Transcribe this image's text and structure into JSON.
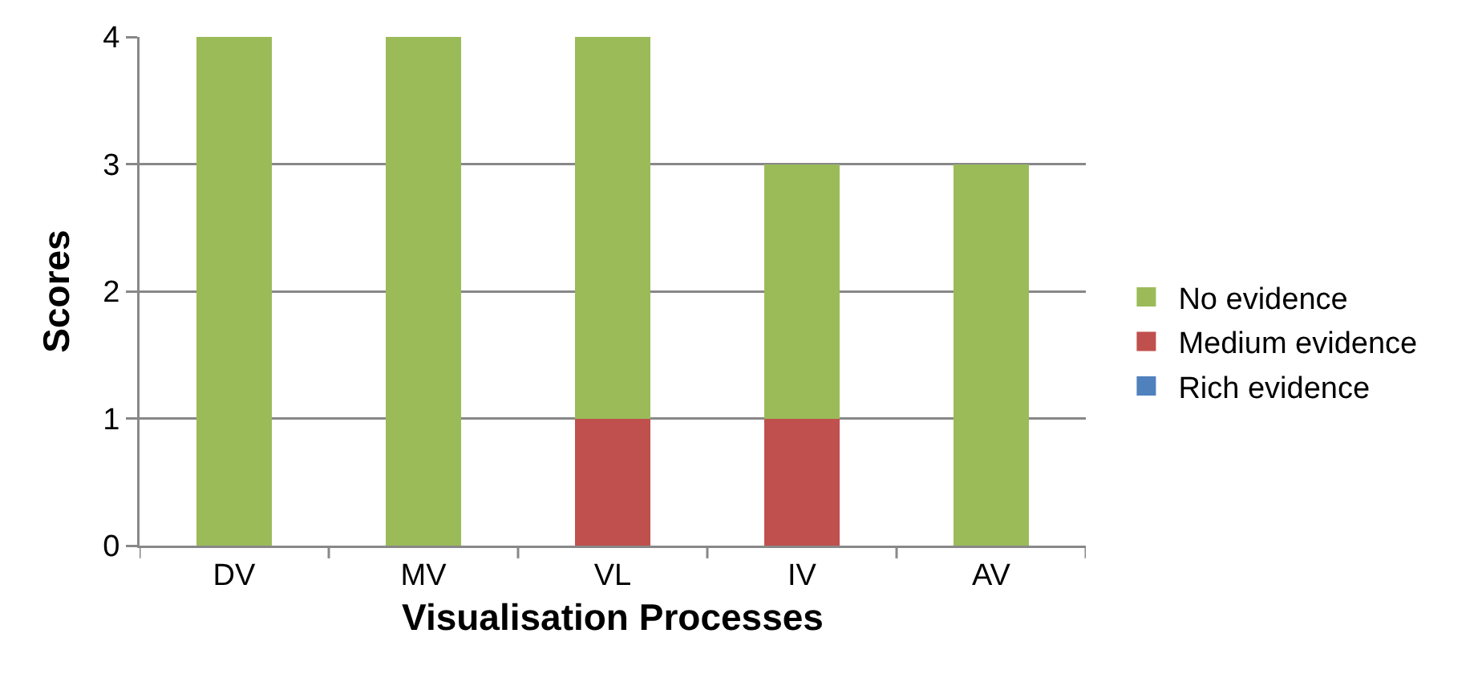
{
  "chart_data": {
    "type": "bar",
    "xlabel": "Visualisation Processes",
    "ylabel": "Scores",
    "categories": [
      "DV",
      "MV",
      "VL",
      "IV",
      "AV"
    ],
    "series": [
      {
        "name": "Rich evidence",
        "color": "#4f81bd",
        "values": [
          0,
          0,
          0,
          0,
          0
        ]
      },
      {
        "name": "Medium evidence",
        "color": "#c0504d",
        "values": [
          0,
          0,
          1,
          1,
          0
        ]
      },
      {
        "name": "No evidence",
        "color": "#9bbb59",
        "values": [
          4,
          4,
          3,
          2,
          3
        ]
      }
    ],
    "stacked": true,
    "ylim": [
      0,
      4
    ],
    "yticks": [
      0,
      1,
      2,
      3,
      4
    ],
    "grid": "y",
    "legend": "right"
  }
}
